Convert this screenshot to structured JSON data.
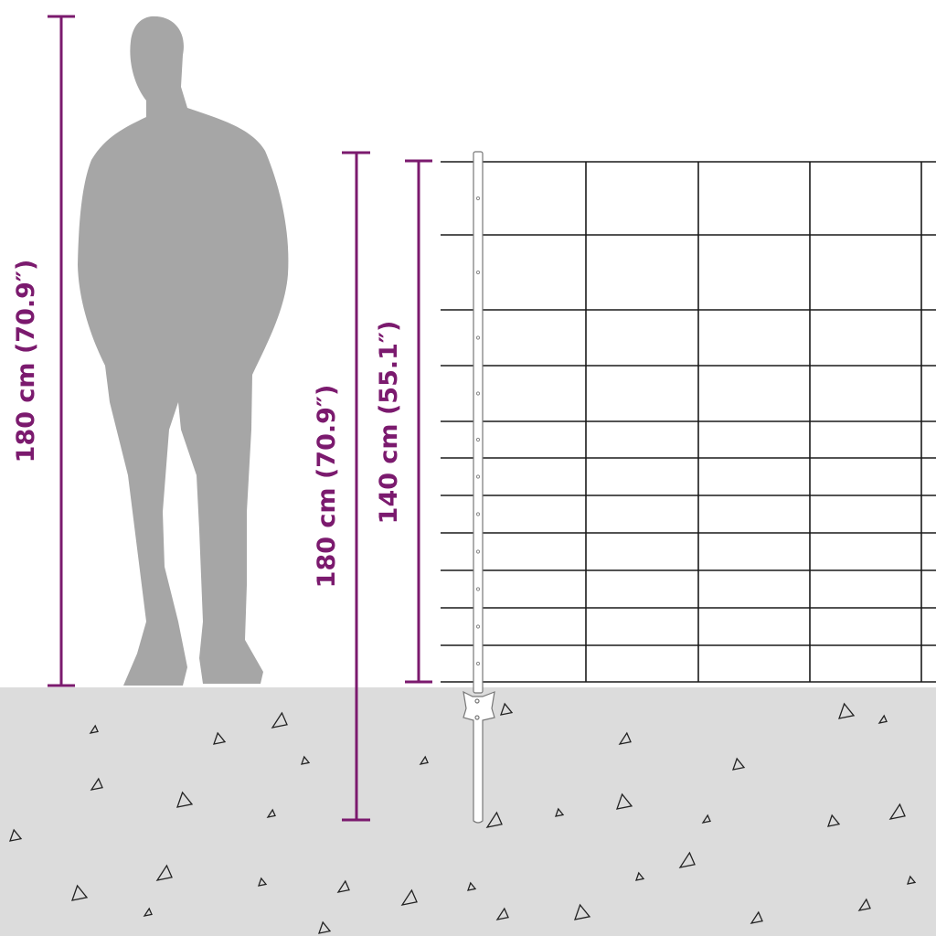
{
  "labels": {
    "person_height": "180 cm (70.9″)",
    "post_height": "180 cm (70.9″)",
    "fence_height": "140 cm (55.1″)"
  },
  "colors": {
    "dimension": "#7b1a6e",
    "ground": "#dcdcdc",
    "silhouette": "#a6a6a6",
    "wire": "#1a1a1a"
  },
  "fence": {
    "horizontal_wires": 12,
    "vertical_wires": 4
  }
}
